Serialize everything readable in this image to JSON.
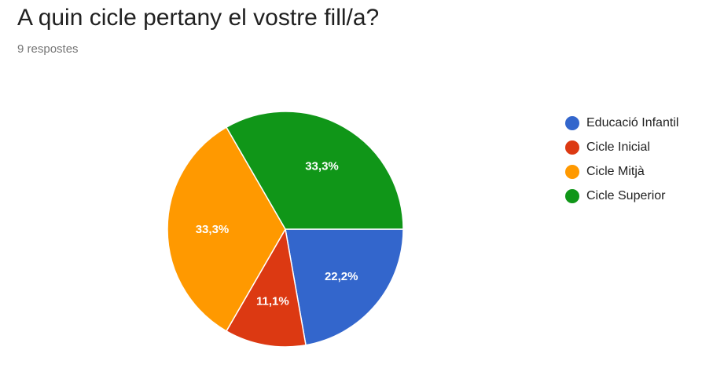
{
  "header": {
    "title": "A quin cicle pertany el vostre fill/a?",
    "subtitle": "9 respostes"
  },
  "chart_data": {
    "type": "pie",
    "title": "A quin cicle pertany el vostre fill/a?",
    "subtitle": "9 respostes",
    "categories": [
      "Educació Infantil",
      "Cicle Inicial",
      "Cicle Mitjà",
      "Cicle Superior"
    ],
    "values": [
      22.2,
      11.1,
      33.3,
      33.3
    ],
    "labels": [
      "22,2%",
      "11,1%",
      "33,3%",
      "33,3%"
    ],
    "colors": [
      "#3366cc",
      "#dc3912",
      "#ff9900",
      "#109618"
    ],
    "legend_position": "right"
  },
  "legend": {
    "items": [
      {
        "label": "Educació Infantil",
        "color": "#3366cc"
      },
      {
        "label": "Cicle Inicial",
        "color": "#dc3912"
      },
      {
        "label": "Cicle Mitjà",
        "color": "#ff9900"
      },
      {
        "label": "Cicle Superior",
        "color": "#109618"
      }
    ]
  }
}
